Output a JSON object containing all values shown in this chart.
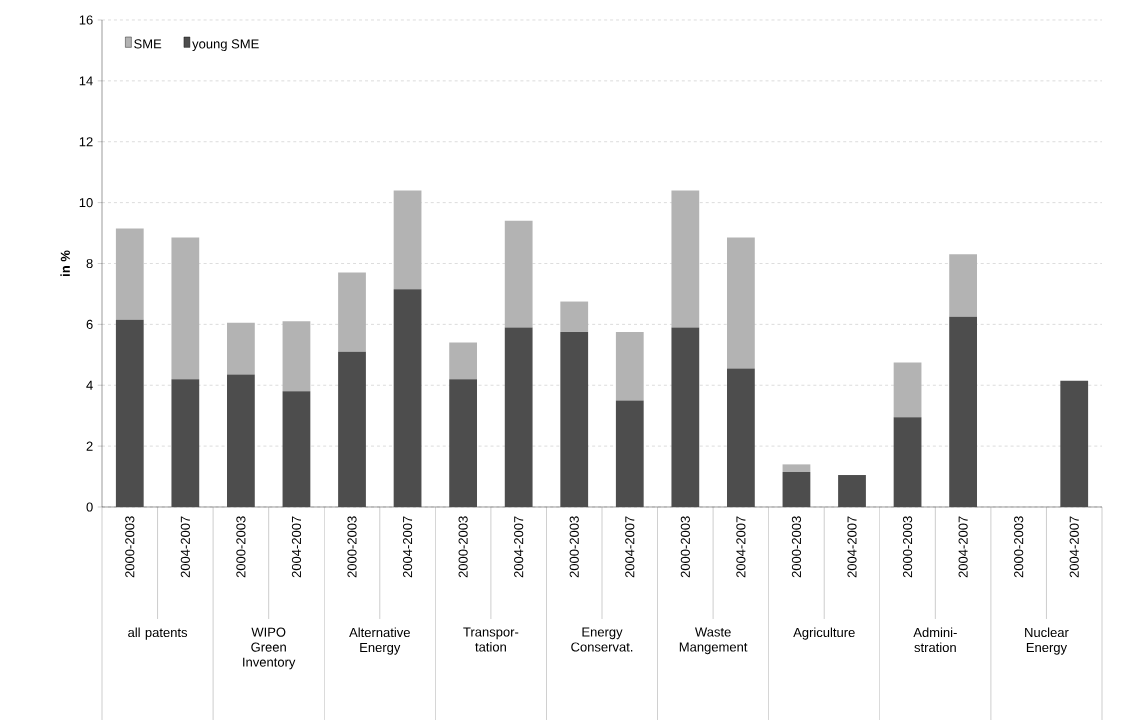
{
  "chart_data": {
    "type": "bar",
    "stacked": true,
    "ylabel": "in %",
    "categories": [
      "2000-2003",
      "2004-2007",
      "2000-2003",
      "2004-2007",
      "2000-2003",
      "2004-2007",
      "2000-2003",
      "2004-2007",
      "2000-2003",
      "2004-2007",
      "2000-2003",
      "2004-2007",
      "2000-2003",
      "2004-2007",
      "2000-2003",
      "2004-2007",
      "2000-2003",
      "2004-2007"
    ],
    "series": [
      {
        "name": "young SME",
        "color": "#4d4d4d",
        "values": [
          6.15,
          4.2,
          4.35,
          3.8,
          5.1,
          7.15,
          4.2,
          5.9,
          5.75,
          3.5,
          5.9,
          4.55,
          1.15,
          1.05,
          2.95,
          6.25,
          0,
          4.15
        ]
      },
      {
        "name": "SME",
        "color": "#b3b3b3",
        "values": [
          3.0,
          4.65,
          1.7,
          2.3,
          2.6,
          3.25,
          1.2,
          3.5,
          1.0,
          2.25,
          4.5,
          4.3,
          0.25,
          0,
          1.8,
          2.05,
          0,
          0
        ]
      }
    ],
    "annotations": [
      "all patents",
      "WIPO Green Inventory",
      "Alternative Energy",
      "Transpor-tation",
      "Energy Conservat.",
      "Waste Mangement",
      "Agriculture",
      "Admini-stration",
      "Nuclear Energy"
    ],
    "ylim": [
      0,
      16
    ],
    "yticks": [
      0,
      2,
      4,
      6,
      8,
      10,
      12,
      14,
      16
    ],
    "grid": "y",
    "legend": "top left"
  }
}
